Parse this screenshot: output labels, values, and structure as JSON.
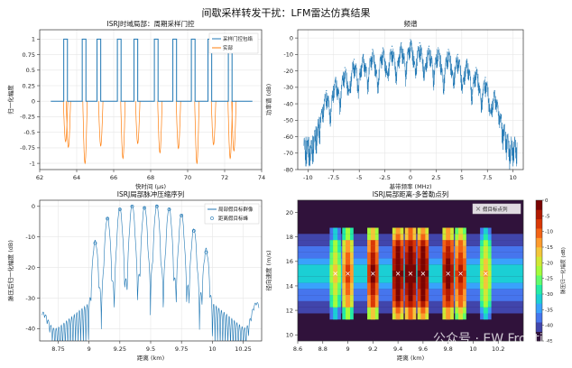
{
  "figure": {
    "title": "间歇采样转发干扰：LFM雷达仿真结果",
    "watermark": "公众号 · EW Frontier"
  },
  "chart_data": [
    {
      "id": "time-domain",
      "type": "line",
      "title": "ISRJ时域局部：周期采样门控",
      "xlabel": "快时间 (μs)",
      "ylabel": "归一化幅度",
      "xlim": [
        62,
        74
      ],
      "ylim": [
        -1.1,
        1.15
      ],
      "xticks": [
        62,
        64,
        66,
        68,
        70,
        72,
        74
      ],
      "yticks": [
        -1.0,
        -0.75,
        -0.5,
        -0.25,
        0.0,
        0.25,
        0.5,
        0.75,
        1.0
      ],
      "grid": true,
      "legend": "top-right",
      "gate": {
        "name": "采样门控包络",
        "color": "#1f77b4",
        "high": 1,
        "low": 0,
        "windows": [
          [
            63.3,
            63.5
          ],
          [
            64.3,
            64.5
          ],
          [
            65.1,
            65.3
          ],
          [
            66.2,
            66.4
          ],
          [
            67.1,
            67.3
          ],
          [
            68.2,
            68.4
          ],
          [
            69.2,
            69.4
          ],
          [
            70.2,
            70.4
          ],
          [
            71.1,
            71.3
          ],
          [
            72.2,
            72.4
          ]
        ],
        "range": [
          62.6,
          73.5
        ]
      },
      "real_part": {
        "name": "实部",
        "color": "#ff7f0e",
        "dips": [
          [
            63.4,
            -0.65
          ],
          [
            63.55,
            -0.74
          ],
          [
            64.45,
            -1.0
          ],
          [
            65.3,
            -0.72
          ],
          [
            66.5,
            -0.92
          ],
          [
            67.3,
            -0.68
          ],
          [
            68.5,
            -0.83
          ],
          [
            69.5,
            -0.76
          ],
          [
            70.5,
            -1.0
          ],
          [
            71.4,
            -0.7
          ],
          [
            72.3,
            -0.92
          ],
          [
            72.5,
            -0.8
          ]
        ]
      }
    },
    {
      "id": "spectrum",
      "type": "line",
      "title": "频谱",
      "xlabel": "基带频率 (MHz)",
      "ylabel": "功率谱 (dB)",
      "xlim": [
        -11,
        11
      ],
      "ylim": [
        -80,
        5
      ],
      "xticks": [
        -10.0,
        -7.5,
        -5.0,
        -2.5,
        0.0,
        2.5,
        5.0,
        7.5,
        10.0
      ],
      "yticks": [
        -80,
        -70,
        -60,
        -50,
        -40,
        -30,
        -20,
        -10,
        0
      ],
      "grid": true,
      "color": "#1f77b4",
      "peaks": [
        [
          -8.2,
          -32
        ],
        [
          -7.3,
          -24
        ],
        [
          -6.4,
          -18
        ],
        [
          -5.5,
          -13
        ],
        [
          -4.6,
          -10
        ],
        [
          -3.7,
          -7
        ],
        [
          -2.7,
          -6
        ],
        [
          -1.8,
          -5
        ],
        [
          -0.9,
          -3
        ],
        [
          0.0,
          -1
        ],
        [
          0.9,
          -3
        ],
        [
          1.8,
          -5
        ],
        [
          2.7,
          -6
        ],
        [
          3.7,
          -7
        ],
        [
          4.6,
          -10
        ],
        [
          5.5,
          -13
        ],
        [
          6.4,
          -18
        ],
        [
          7.3,
          -24
        ],
        [
          8.2,
          -32
        ]
      ]
    },
    {
      "id": "pulse-compression",
      "type": "line",
      "title": "ISRJ局部脉冲压缩序列",
      "xlabel": "距离 (km)",
      "ylabel": "脉压后归一化幅度 (dB)",
      "xlim": [
        8.6,
        10.4
      ],
      "ylim": [
        -44,
        2
      ],
      "xticks": [
        8.75,
        9.0,
        9.25,
        9.5,
        9.75,
        10.0,
        10.25
      ],
      "yticks": [
        -40,
        -30,
        -20,
        -10,
        0
      ],
      "grid": true,
      "legend": "top-right",
      "series": [
        {
          "name": "局部假目标群像",
          "color": "#1f77b4"
        },
        {
          "name": "距离假目标峰",
          "color": "#1f77b4"
        }
      ],
      "peaks": [
        [
          9.05,
          -12
        ],
        [
          9.15,
          -4
        ],
        [
          9.25,
          -1
        ],
        [
          9.35,
          0
        ],
        [
          9.45,
          -0.5
        ],
        [
          9.55,
          0
        ],
        [
          9.65,
          -1
        ],
        [
          9.75,
          -3
        ],
        [
          9.85,
          -8
        ],
        [
          9.95,
          -15
        ]
      ]
    },
    {
      "id": "range-doppler",
      "type": "heatmap",
      "title": "ISRJ局部距离-多普勒点列",
      "xlabel": "距离 (km)",
      "ylabel": "径向速度 (m/s)",
      "xlim": [
        8.6,
        10.4
      ],
      "ylim": [
        9.5,
        21
      ],
      "xticks": [
        8.6,
        8.8,
        9.0,
        9.2,
        9.4,
        9.6,
        9.8,
        10.0,
        10.2
      ],
      "yticks": [
        10,
        12,
        14,
        16,
        18,
        20
      ],
      "colorbar": {
        "label": "脉压归一化幅度 (dB)",
        "range": [
          -45,
          0
        ],
        "ticks": [
          0,
          -5,
          -10,
          -15,
          -20,
          -25,
          -30,
          -35,
          -40,
          -45
        ]
      },
      "legend": "top-right",
      "marker_legend": "假目标点列",
      "targets": [
        {
          "x": 8.9,
          "v": 15.0,
          "level": -22
        },
        {
          "x": 9.0,
          "v": 15.0,
          "level": -12
        },
        {
          "x": 9.2,
          "v": 15.0,
          "level": -6
        },
        {
          "x": 9.4,
          "v": 15.0,
          "level": -1
        },
        {
          "x": 9.5,
          "v": 15.0,
          "level": 0
        },
        {
          "x": 9.6,
          "v": 15.0,
          "level": -1
        },
        {
          "x": 9.8,
          "v": 15.0,
          "level": -3
        },
        {
          "x": 9.9,
          "v": 15.0,
          "level": -8
        },
        {
          "x": 10.1,
          "v": 15.0,
          "level": -20
        }
      ]
    }
  ]
}
